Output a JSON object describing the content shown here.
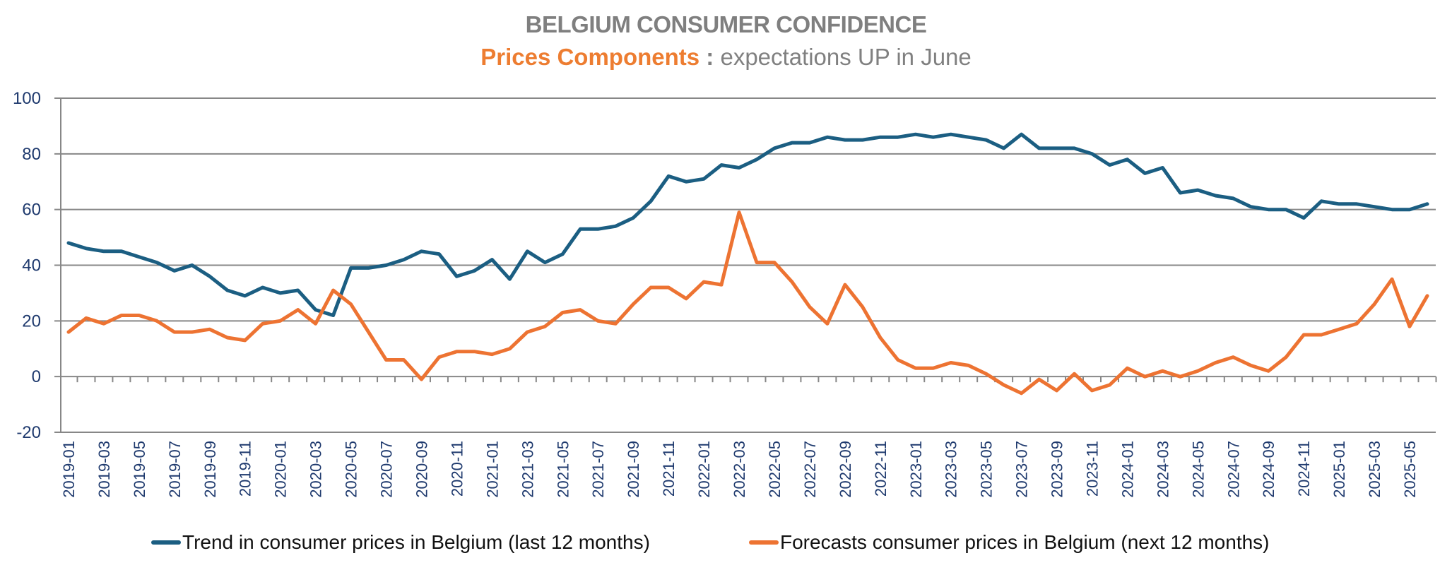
{
  "header": {
    "title": "BELGIUM CONSUMER CONFIDENCE",
    "subtitle_highlight": "Prices Components",
    "subtitle_sep": " : ",
    "subtitle_rest": "expectations UP in June"
  },
  "colors": {
    "series_trend": "#1b5e82",
    "series_forecast": "#ed7332",
    "highlight": "#ed7d31",
    "grid": "#878787",
    "axis_text": "#1f3a6e"
  },
  "chart_data": {
    "type": "line",
    "title": "BELGIUM CONSUMER CONFIDENCE",
    "subtitle": "Prices Components : expectations UP in June",
    "xlabel": "",
    "ylabel": "",
    "ylim": [
      -20,
      100
    ],
    "yticks": [
      100,
      80,
      60,
      40,
      20,
      0,
      -20
    ],
    "grid": true,
    "legend_position": "bottom",
    "x": [
      "2019-01",
      "2019-02",
      "2019-03",
      "2019-04",
      "2019-05",
      "2019-06",
      "2019-07",
      "2019-08",
      "2019-09",
      "2019-10",
      "2019-11",
      "2019-12",
      "2020-01",
      "2020-02",
      "2020-03",
      "2020-04",
      "2020-05",
      "2020-06",
      "2020-07",
      "2020-08",
      "2020-09",
      "2020-10",
      "2020-11",
      "2020-12",
      "2021-01",
      "2021-02",
      "2021-03",
      "2021-04",
      "2021-05",
      "2021-06",
      "2021-07",
      "2021-08",
      "2021-09",
      "2021-10",
      "2021-11",
      "2021-12",
      "2022-01",
      "2022-02",
      "2022-03",
      "2022-04",
      "2022-05",
      "2022-06",
      "2022-07",
      "2022-08",
      "2022-09",
      "2022-10",
      "2022-11",
      "2022-12",
      "2023-01",
      "2023-02",
      "2023-03",
      "2023-04",
      "2023-05",
      "2023-06",
      "2023-07",
      "2023-08",
      "2023-09",
      "2023-10",
      "2023-11",
      "2023-12",
      "2024-01",
      "2024-02",
      "2024-03",
      "2024-04",
      "2024-05",
      "2024-06",
      "2024-07",
      "2024-08",
      "2024-09",
      "2024-10",
      "2024-11",
      "2024-12",
      "2025-01",
      "2025-02",
      "2025-03",
      "2025-04",
      "2025-05",
      "2025-06"
    ],
    "xtick_labels": [
      "2019-01",
      "2019-03",
      "2019-05",
      "2019-07",
      "2019-09",
      "2019-11",
      "2020-01",
      "2020-03",
      "2020-05",
      "2020-07",
      "2020-09",
      "2020-11",
      "2021-01",
      "2021-03",
      "2021-05",
      "2021-07",
      "2021-09",
      "2021-11",
      "2022-01",
      "2022-03",
      "2022-05",
      "2022-07",
      "2022-09",
      "2022-11",
      "2023-01",
      "2023-03",
      "2023-05",
      "2023-07",
      "2023-09",
      "2023-11",
      "2024-01",
      "2024-03",
      "2024-05",
      "2024-07",
      "2024-09",
      "2024-11",
      "2025-01",
      "2025-03",
      "2025-05"
    ],
    "series": [
      {
        "name": "Trend in consumer prices in Belgium (last 12 months)",
        "color": "#1b5e82",
        "values": [
          48,
          46,
          45,
          45,
          43,
          41,
          38,
          40,
          36,
          31,
          29,
          32,
          30,
          31,
          24,
          22,
          39,
          39,
          40,
          42,
          45,
          44,
          36,
          38,
          42,
          35,
          45,
          41,
          44,
          53,
          53,
          54,
          57,
          63,
          72,
          70,
          71,
          76,
          75,
          78,
          82,
          84,
          84,
          86,
          85,
          85,
          86,
          86,
          87,
          86,
          87,
          86,
          85,
          82,
          87,
          82,
          82,
          82,
          80,
          76,
          78,
          73,
          75,
          66,
          67,
          65,
          64,
          61,
          60,
          60,
          57,
          63,
          62,
          62,
          61,
          60,
          60,
          62
        ]
      },
      {
        "name": "Forecasts consumer prices in Belgium (next 12 months)",
        "color": "#ed7332",
        "values": [
          16,
          21,
          19,
          22,
          22,
          20,
          16,
          16,
          17,
          14,
          13,
          19,
          20,
          24,
          19,
          31,
          26,
          16,
          6,
          6,
          -1,
          7,
          9,
          9,
          8,
          10,
          16,
          18,
          23,
          24,
          20,
          19,
          26,
          32,
          32,
          28,
          34,
          33,
          59,
          41,
          41,
          34,
          25,
          19,
          33,
          25,
          14,
          6,
          3,
          3,
          5,
          4,
          1,
          -3,
          -6,
          -1,
          -5,
          1,
          -5,
          -3,
          3,
          0,
          2,
          0,
          2,
          5,
          7,
          4,
          2,
          7,
          15,
          15,
          17,
          19,
          26,
          35,
          18,
          29
        ]
      }
    ]
  }
}
